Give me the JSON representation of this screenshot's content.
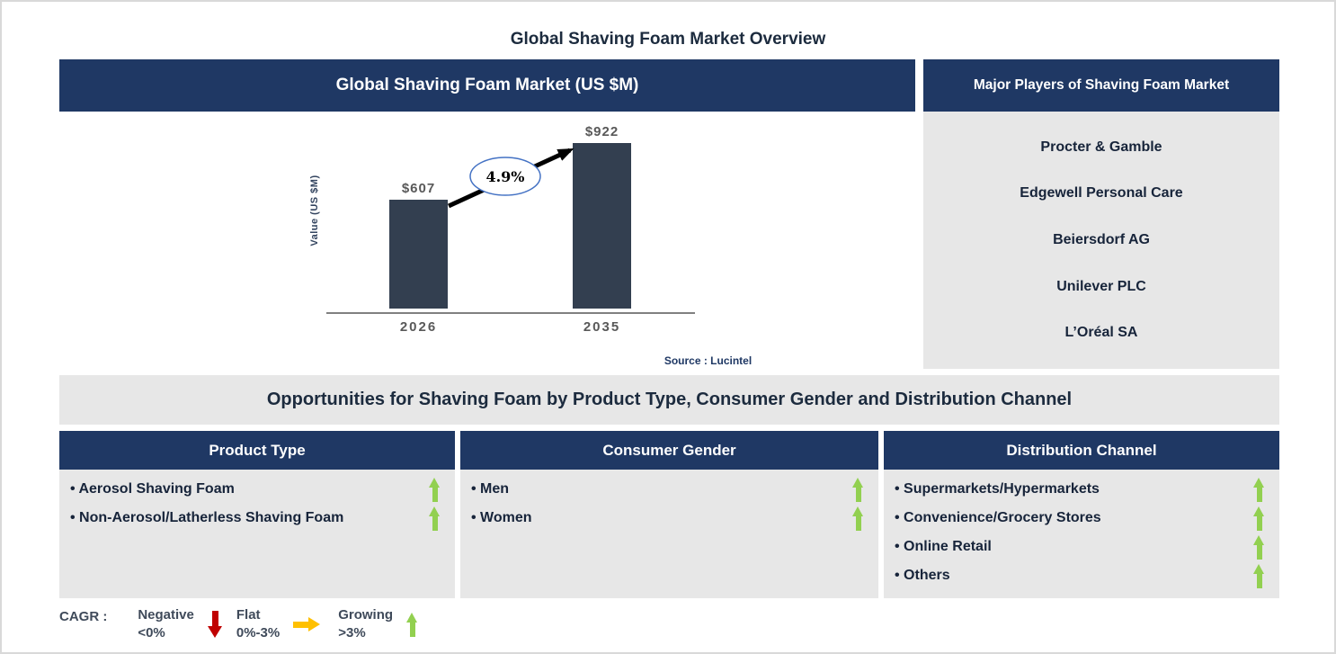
{
  "page_title": "Global Shaving Foam Market Overview",
  "chart_panel": {
    "header": "Global Shaving Foam Market (US $M)",
    "source": "Source : Lucintel"
  },
  "chart_data": {
    "type": "bar",
    "title": "Global Shaving Foam Market (US $M)",
    "categories": [
      "2026",
      "2035"
    ],
    "values": [
      607,
      922
    ],
    "value_labels": [
      "$607",
      "$922"
    ],
    "ylabel": "Value (US $M)",
    "ylim": [
      0,
      1000
    ],
    "cagr_label": "4.9%",
    "bar_color": "#333f50",
    "grid": false,
    "annotation": "arrow from 2026 bar to 2035 bar with CAGR ellipse"
  },
  "players_panel": {
    "header": "Major Players of Shaving Foam Market",
    "players": [
      "Procter & Gamble",
      "Edgewell Personal Care",
      "Beiersdorf AG",
      "Unilever PLC",
      "L’Oréal SA"
    ]
  },
  "opportunities": {
    "band_title": "Opportunities for Shaving Foam by Product Type, Consumer Gender and Distribution Channel",
    "columns": [
      {
        "header": "Product Type",
        "items": [
          {
            "label": "Aerosol Shaving Foam",
            "trend": "up"
          },
          {
            "label": "Non-Aerosol/Latherless Shaving Foam",
            "trend": "up"
          }
        ]
      },
      {
        "header": "Consumer Gender",
        "items": [
          {
            "label": "Men",
            "trend": "up"
          },
          {
            "label": "Women",
            "trend": "up"
          }
        ]
      },
      {
        "header": "Distribution Channel",
        "items": [
          {
            "label": "Supermarkets/Hypermarkets",
            "trend": "up"
          },
          {
            "label": "Convenience/Grocery Stores",
            "trend": "up"
          },
          {
            "label": "Online Retail",
            "trend": "up"
          },
          {
            "label": "Others",
            "trend": "up"
          }
        ]
      }
    ]
  },
  "legend": {
    "label": "CAGR :",
    "entries": [
      {
        "name": "Negative",
        "range": "<0%",
        "direction": "down",
        "color": "#c00000"
      },
      {
        "name": "Flat",
        "range": "0%-3%",
        "direction": "right",
        "color": "#ffc000"
      },
      {
        "name": "Growing",
        "range": ">3%",
        "direction": "up",
        "color": "#92d050"
      }
    ]
  },
  "colors": {
    "header_navy": "#1f3864",
    "panel_gray": "#e7e7e7",
    "bar_slate": "#333f50",
    "text_dark": "#17243a",
    "ellipse_border": "#4472c4"
  }
}
